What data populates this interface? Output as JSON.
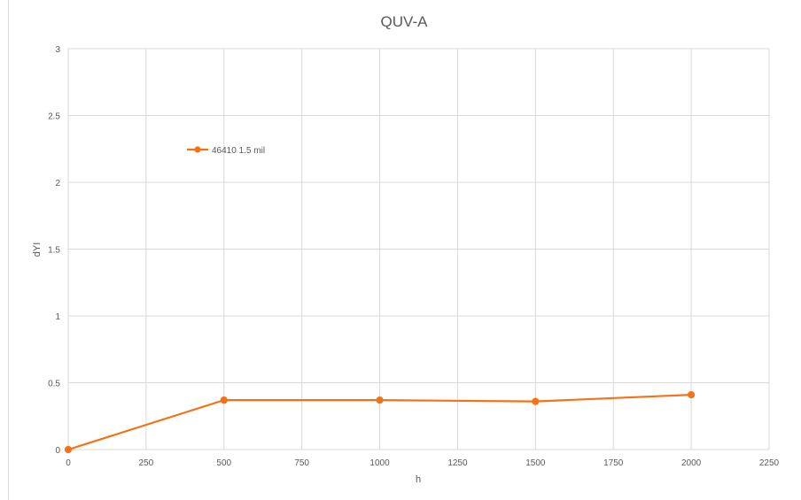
{
  "chart_data": {
    "type": "line",
    "title": "QUV-A",
    "xlabel": "h",
    "ylabel": "dYI",
    "xlim": [
      0,
      2250
    ],
    "ylim": [
      0,
      3
    ],
    "x_ticks": [
      0,
      250,
      500,
      750,
      1000,
      1250,
      1500,
      1750,
      2000,
      2250
    ],
    "y_ticks": [
      0,
      0.5,
      1,
      1.5,
      2,
      2.5,
      3
    ],
    "grid": true,
    "legend_position": "top-left",
    "series": [
      {
        "name": "46410 1.5 mil",
        "color": "#f47216",
        "marker": "circle",
        "x": [
          0,
          500,
          1000,
          1500,
          2000
        ],
        "y": [
          0,
          0.37,
          0.37,
          0.36,
          0.41
        ]
      }
    ]
  },
  "colors": {
    "grid": "#d9d9d9",
    "text": "#595959",
    "series": "#f47216"
  }
}
